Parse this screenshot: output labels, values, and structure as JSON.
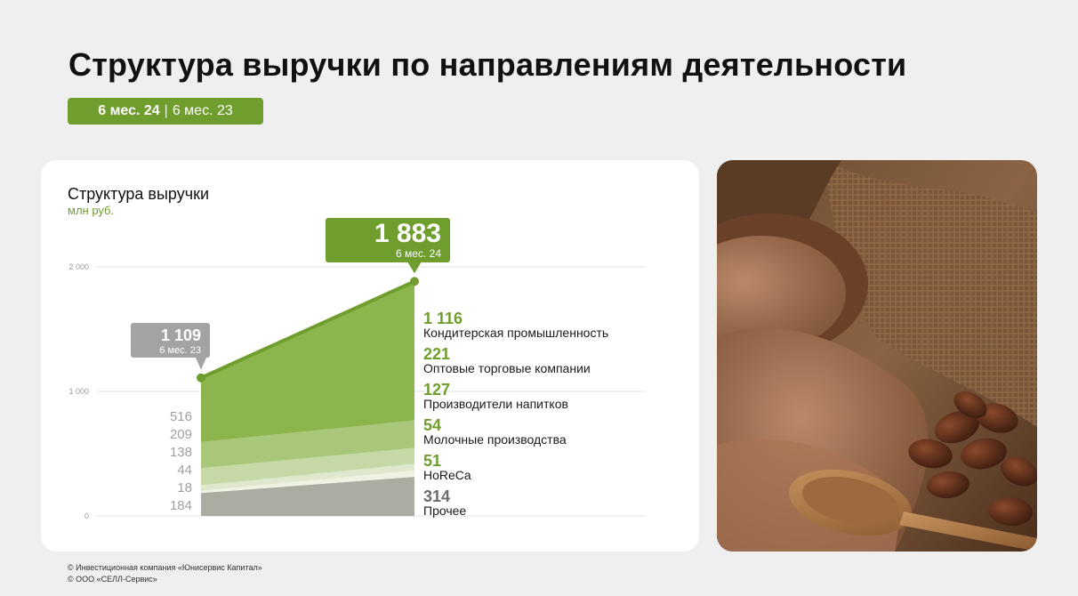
{
  "page": {
    "title": "Структура выручки по направлениям деятельности",
    "period_current": "6 мес. 24",
    "period_separator": "|",
    "period_previous": "6 мес. 23"
  },
  "colors": {
    "accent_green": "#6f9e2e",
    "gray_segment": "#a9ada2",
    "gray_text": "#a0a0a0"
  },
  "chart_data": {
    "type": "area",
    "title": "Структура выручки",
    "ylabel": "млн руб.",
    "ylim": [
      0,
      2000
    ],
    "yticks": [
      {
        "value": 0,
        "label": "0"
      },
      {
        "value": 1000,
        "label": "1 000"
      },
      {
        "value": 2000,
        "label": "2 000"
      }
    ],
    "grid": true,
    "x": [
      "6 мес. 23",
      "6 мес. 24"
    ],
    "totals": [
      {
        "value": 1109,
        "label": "1 109",
        "period": "6 мес. 23"
      },
      {
        "value": 1883,
        "label": "1 883",
        "period": "6 мес. 24"
      }
    ],
    "series": [
      {
        "name": "Прочее",
        "values": [
          184,
          314
        ],
        "labels": [
          "184",
          "314"
        ],
        "color": "#a9ada2",
        "label_color": "#6b6b6b"
      },
      {
        "name": "HoReCa",
        "values": [
          18,
          51
        ],
        "labels": [
          "18",
          "51"
        ],
        "color": "#eef2e3",
        "label_color": "#6f9e2e"
      },
      {
        "name": "Молочные производства",
        "values": [
          44,
          54
        ],
        "labels": [
          "44",
          "54"
        ],
        "color": "#dfe8cc",
        "label_color": "#6f9e2e"
      },
      {
        "name": "Производители напитков",
        "values": [
          138,
          127
        ],
        "labels": [
          "138",
          "127"
        ],
        "color": "#c6d8a6",
        "label_color": "#6f9e2e"
      },
      {
        "name": "Оптовые торговые компании",
        "values": [
          209,
          221
        ],
        "labels": [
          "209",
          "221"
        ],
        "color": "#a9c77a",
        "label_color": "#6f9e2e"
      },
      {
        "name": "Кондитерская промышленность",
        "values": [
          516,
          1116
        ],
        "labels": [
          "516",
          "1 116"
        ],
        "color": "#8db54e",
        "label_color": "#6f9e2e"
      }
    ]
  },
  "footer": {
    "line1": "© Инвестиционная компания «Юнисервис Капитал»",
    "line2": "© ООО «СЕЛЛ-Сервис»"
  },
  "image": {
    "subject": "cocoa-powder-and-beans-photo"
  }
}
